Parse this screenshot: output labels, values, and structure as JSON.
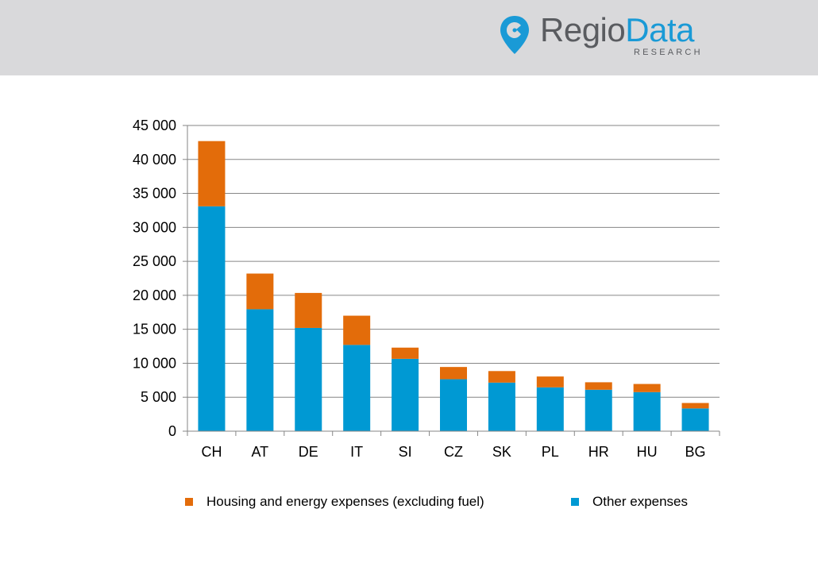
{
  "brand": {
    "name_part1": "Regio",
    "name_part2": "Data",
    "tagline": "RESEARCH",
    "icon": "map-pin-icon",
    "colors": {
      "gray": "#5a5c60",
      "blue": "#1a9ad6"
    }
  },
  "colors": {
    "housing": "#e36c0a",
    "other": "#0099d3",
    "grid": "#868686",
    "header_bg": "#d9d9db"
  },
  "chart_data": {
    "type": "bar",
    "stacked": true,
    "title": "",
    "xlabel": "",
    "ylabel": "",
    "categories": [
      "CH",
      "AT",
      "DE",
      "IT",
      "SI",
      "CZ",
      "SK",
      "PL",
      "HR",
      "HU",
      "BG"
    ],
    "series": [
      {
        "name": "Other expenses",
        "color": "#0099d3",
        "values": [
          33100,
          17950,
          15200,
          12700,
          10650,
          7650,
          7150,
          6450,
          6100,
          5750,
          3350
        ]
      },
      {
        "name": "Housing and energy expenses (excluding fuel)",
        "color": "#e36c0a",
        "values": [
          9600,
          5250,
          5150,
          4300,
          1650,
          1800,
          1700,
          1600,
          1100,
          1200,
          800
        ]
      }
    ],
    "ylim": [
      0,
      45000
    ],
    "yticks": [
      "0",
      "5 000",
      "10 000",
      "15 000",
      "20 000",
      "25 000",
      "30 000",
      "35 000",
      "40 000",
      "45 000"
    ],
    "grid": true,
    "legend_position": "bottom"
  }
}
